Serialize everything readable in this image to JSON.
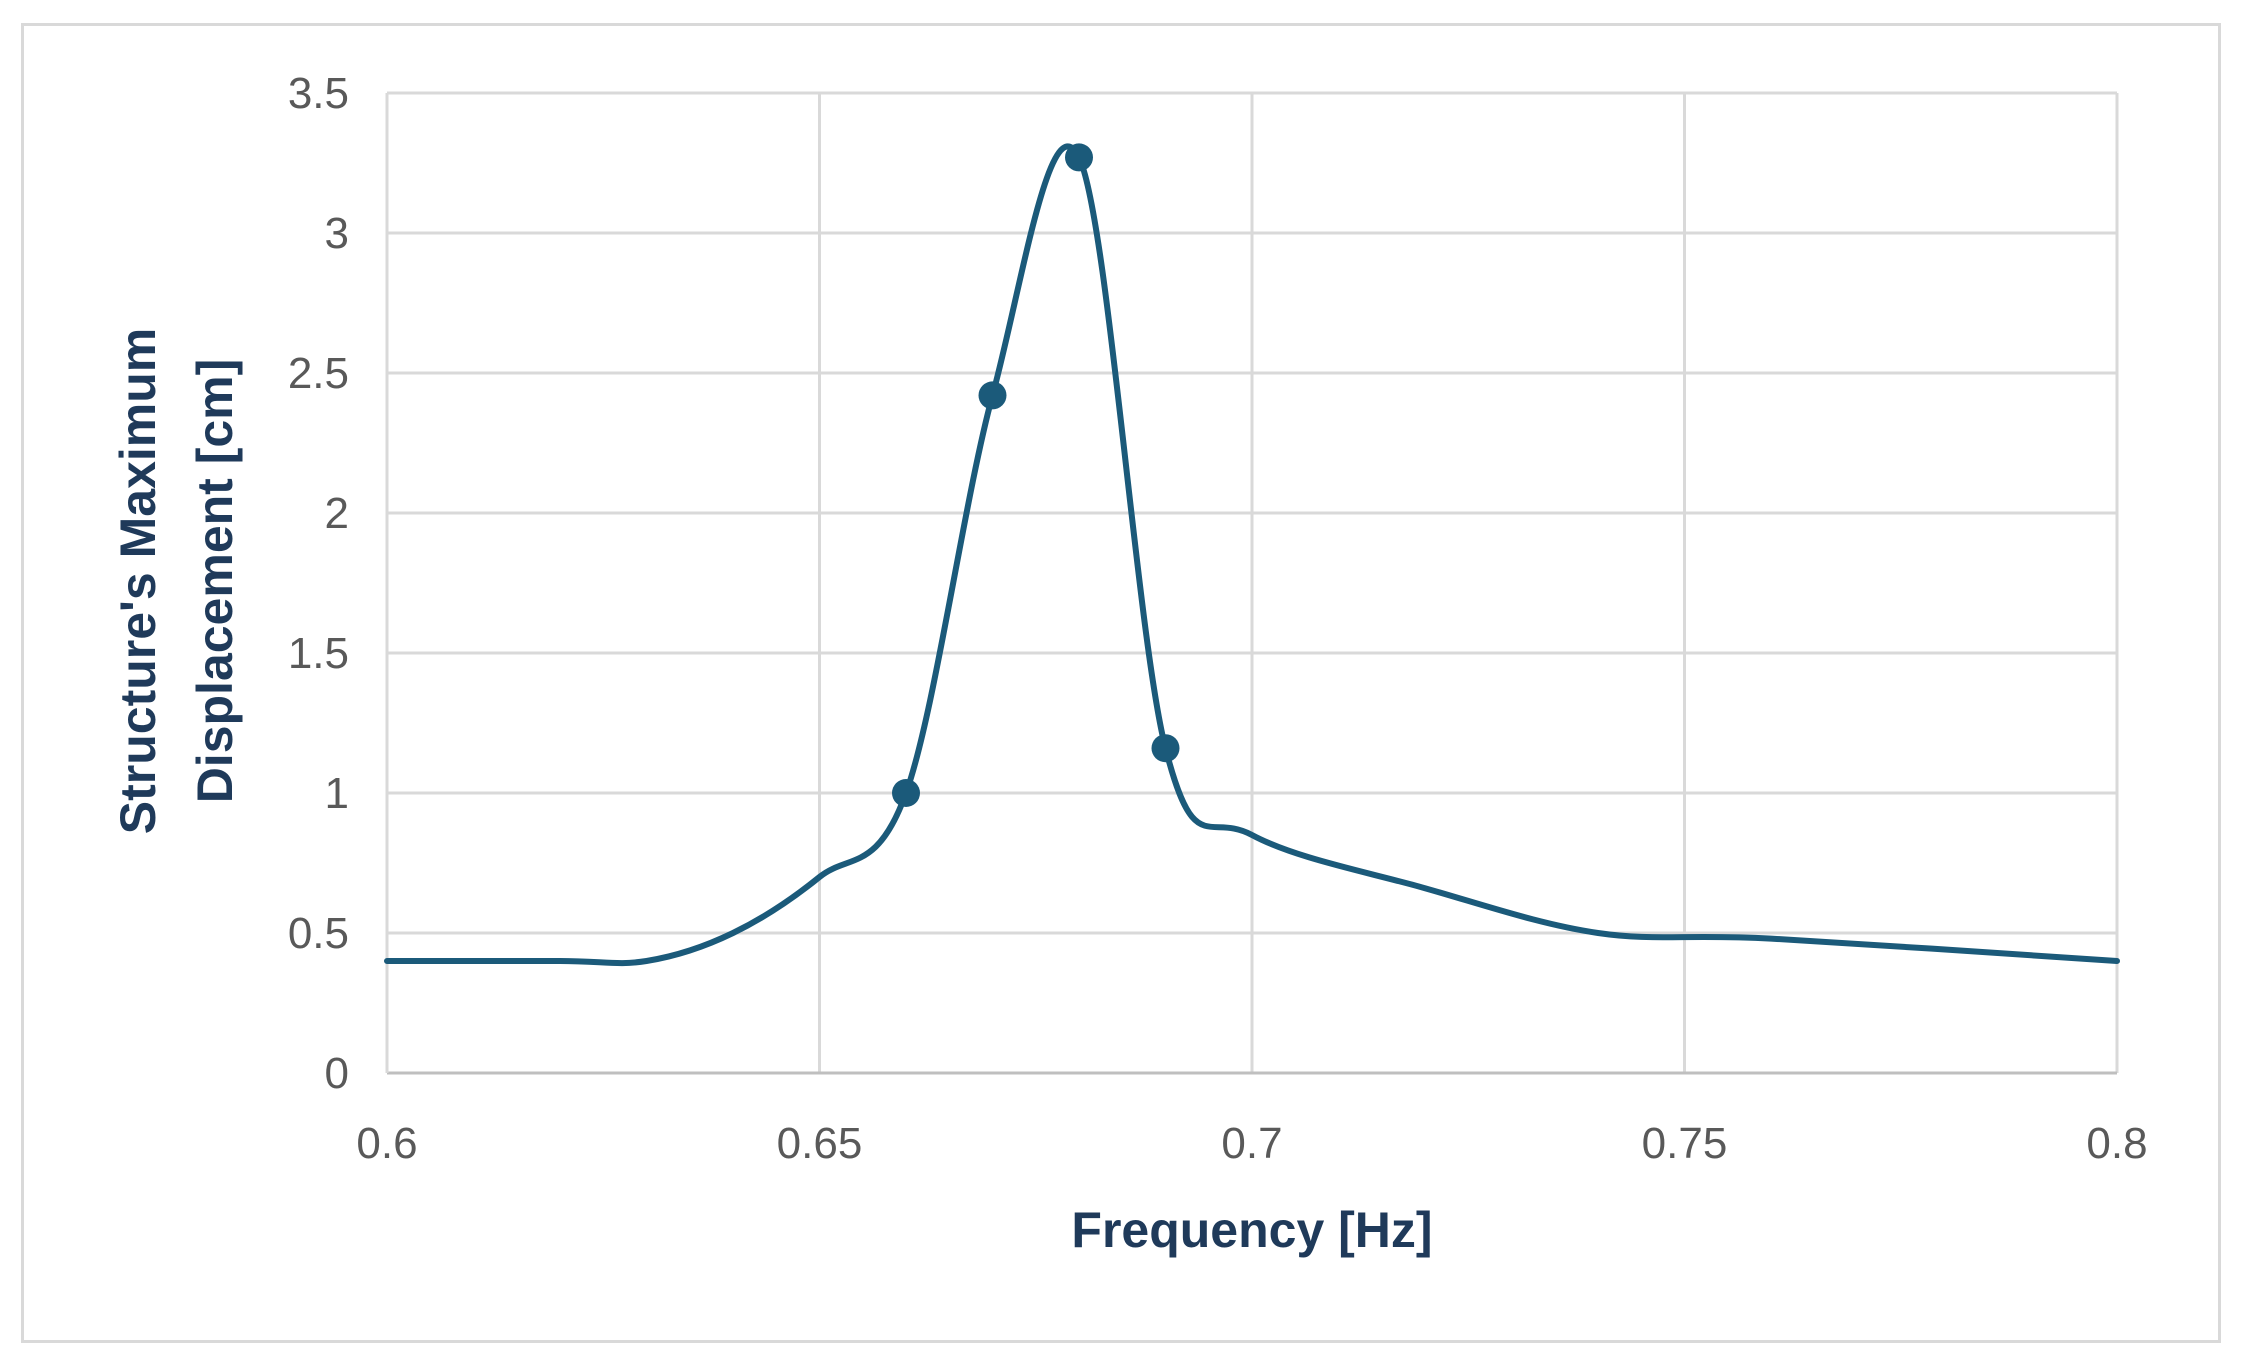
{
  "chart_data": {
    "type": "line",
    "title": "",
    "xlabel": "Frequency [Hz]",
    "ylabel_lines": [
      "Structure's Maximum",
      "Displacement [cm]"
    ],
    "xlim": [
      0.6,
      0.8
    ],
    "ylim": [
      0,
      3.5
    ],
    "x_ticks": [
      "0.6",
      "0.65",
      "0.7",
      "0.75",
      "0.8"
    ],
    "y_ticks": [
      "0",
      "0.5",
      "1",
      "1.5",
      "2",
      "2.5",
      "3",
      "3.5"
    ],
    "grid": true,
    "legend": "none",
    "line_color": "#1b5a7a",
    "series": [
      {
        "values": [
          {
            "x": 0.6,
            "y": 0.4
          },
          {
            "x": 0.62,
            "y": 0.4
          },
          {
            "x": 0.63,
            "y": 0.4
          },
          {
            "x": 0.64,
            "y": 0.5
          },
          {
            "x": 0.65,
            "y": 0.7
          },
          {
            "x": 0.66,
            "y": 1.0
          },
          {
            "x": 0.67,
            "y": 2.42
          },
          {
            "x": 0.68,
            "y": 3.27
          },
          {
            "x": 0.69,
            "y": 1.16
          },
          {
            "x": 0.7,
            "y": 0.85
          },
          {
            "x": 0.72,
            "y": 0.66
          },
          {
            "x": 0.74,
            "y": 0.5
          },
          {
            "x": 0.76,
            "y": 0.48
          },
          {
            "x": 0.8,
            "y": 0.4
          }
        ],
        "markers": [
          {
            "x": 0.66,
            "y": 1.0
          },
          {
            "x": 0.67,
            "y": 2.42
          },
          {
            "x": 0.68,
            "y": 3.27
          },
          {
            "x": 0.69,
            "y": 1.16
          }
        ]
      }
    ]
  }
}
